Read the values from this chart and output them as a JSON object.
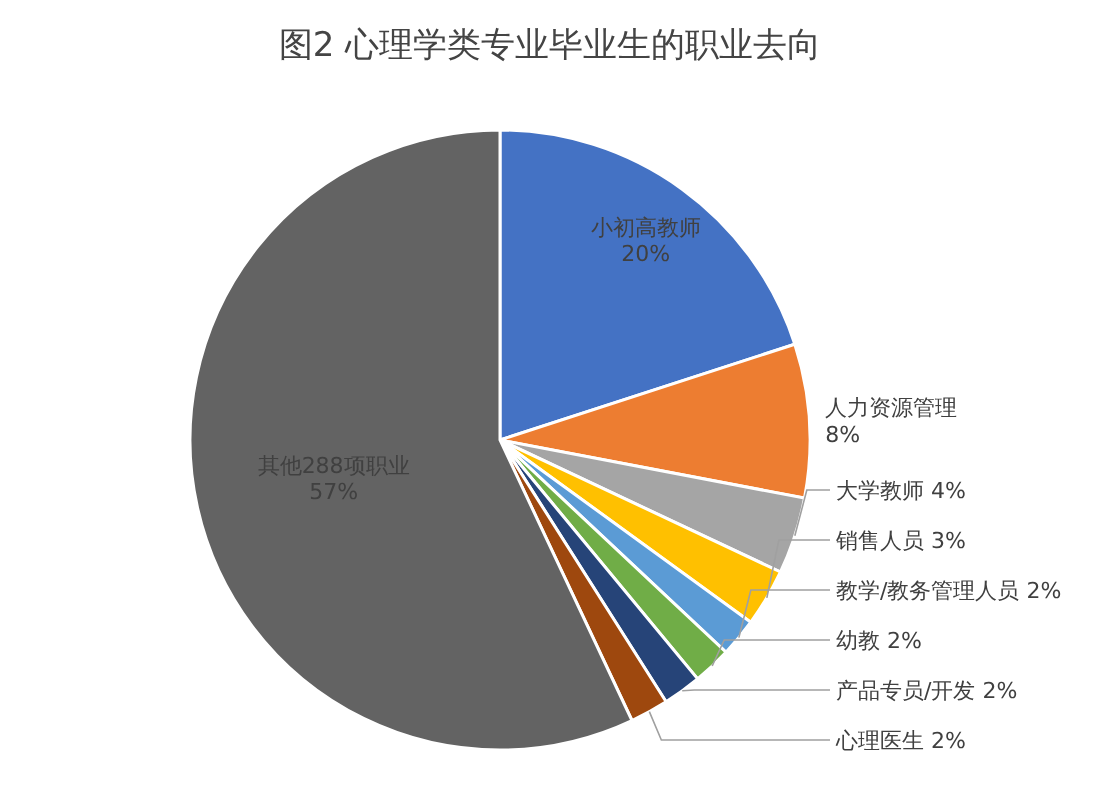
{
  "chart_data": {
    "type": "pie",
    "title": "图2  心理学类专业毕业生的职业去向",
    "categories": [
      "小初高教师",
      "人力资源管理",
      "大学教师",
      "销售人员",
      "教学/教务管理人员",
      "幼教",
      "产品专员/开发",
      "心理医生",
      "其他288项职业"
    ],
    "values": [
      20,
      8,
      4,
      3,
      2,
      2,
      2,
      2,
      57
    ],
    "value_labels": [
      "20%",
      "8%",
      "4%",
      "3%",
      "2%",
      "2%",
      "2%",
      "2%",
      "57%"
    ],
    "colors": [
      "#4472c4",
      "#ed7d31",
      "#a5a5a5",
      "#ffc000",
      "#5b9bd5",
      "#70ad47",
      "#264478",
      "#9e480e",
      "#636363"
    ],
    "legend": false
  }
}
